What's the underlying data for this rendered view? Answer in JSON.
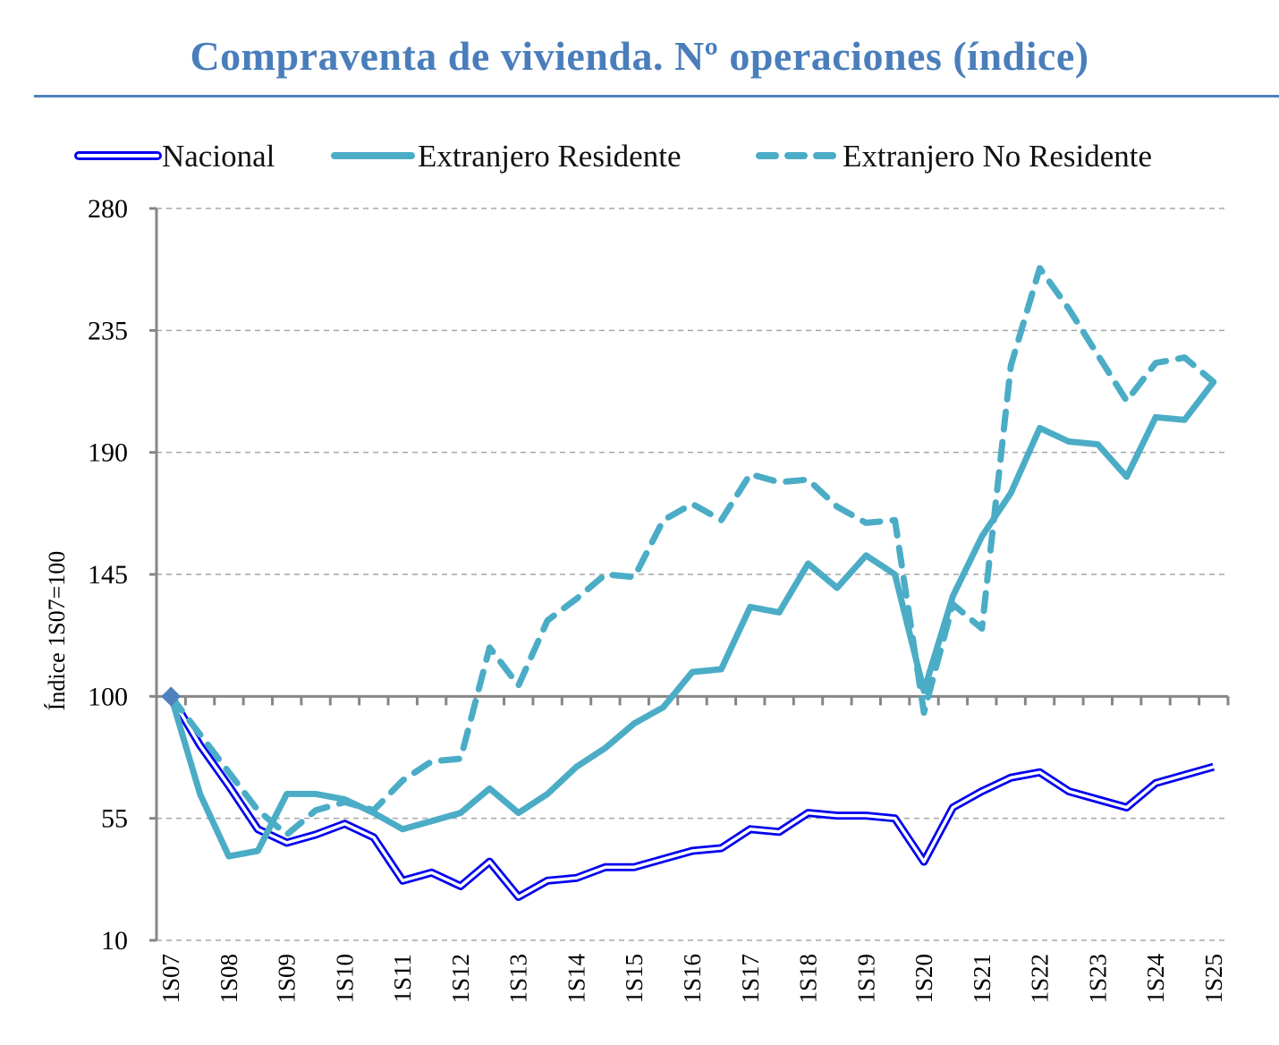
{
  "chart_data": {
    "type": "line",
    "title": "Compraventa de vivienda. Nº operaciones (índice)",
    "xlabel": "",
    "ylabel": "Índice 1S07=100",
    "ylim": [
      10,
      280
    ],
    "yticks": [
      10,
      55,
      100,
      145,
      190,
      235,
      280
    ],
    "grid": true,
    "legend_position": "top",
    "x": [
      "1S07",
      "2S07",
      "1S08",
      "2S08",
      "1S09",
      "2S09",
      "1S10",
      "2S10",
      "1S11",
      "2S11",
      "1S12",
      "2S12",
      "1S13",
      "2S13",
      "1S14",
      "2S14",
      "1S15",
      "2S15",
      "1S16",
      "2S16",
      "1S17",
      "2S17",
      "1S18",
      "2S18",
      "1S19",
      "2S19",
      "1S20",
      "2S20",
      "1S21",
      "2S21",
      "1S22",
      "2S22",
      "1S23",
      "2S23",
      "1S24",
      "2S24",
      "1S25"
    ],
    "xtick_labels": [
      "1S07",
      "1S08",
      "1S09",
      "1S10",
      "1S11",
      "1S12",
      "1S13",
      "1S14",
      "1S15",
      "1S16",
      "1S17",
      "1S18",
      "1S19",
      "1S20",
      "1S21",
      "1S22",
      "1S23",
      "1S24",
      "1S25"
    ],
    "series": [
      {
        "name": "Nacional",
        "color": "#0000ee",
        "style": "double",
        "values": [
          100,
          82,
          67,
          51,
          46,
          49,
          53,
          48,
          32,
          35,
          30,
          39,
          26,
          32,
          33,
          37,
          37,
          40,
          43,
          44,
          51,
          50,
          57,
          56,
          56,
          55,
          39,
          59,
          65,
          70,
          72,
          65,
          62,
          59,
          68,
          71,
          74
        ]
      },
      {
        "name": "Extranjero Residente",
        "color": "#4bacc6",
        "style": "solid",
        "values": [
          100,
          64,
          41,
          43,
          64,
          64,
          62,
          57,
          51,
          54,
          57,
          66,
          57,
          64,
          74,
          81,
          90,
          96,
          109,
          110,
          133,
          131,
          149,
          140,
          152,
          145,
          102,
          137,
          159,
          175,
          199,
          194,
          193,
          181,
          203,
          202,
          216
        ]
      },
      {
        "name": "Extranjero No Residente",
        "color": "#4bacc6",
        "style": "dashed",
        "values": [
          100,
          86,
          72,
          58,
          49,
          58,
          61,
          58,
          69,
          76,
          77,
          118,
          104,
          128,
          136,
          145,
          144,
          165,
          171,
          165,
          182,
          179,
          180,
          170,
          164,
          165,
          94,
          134,
          125,
          222,
          258,
          243,
          226,
          209,
          223,
          225,
          216
        ]
      }
    ],
    "marker": {
      "series": "all",
      "index": 0,
      "value": 100,
      "shape": "diamond",
      "color": "#4f81bd"
    }
  },
  "colors": {
    "title": "#4a7ebb",
    "rule": "#4f81bd",
    "grid": "#a6a6a6",
    "axis": "#868686"
  }
}
